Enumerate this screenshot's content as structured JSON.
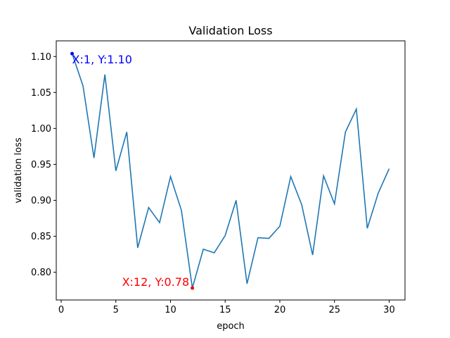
{
  "chart_data": {
    "type": "line",
    "title": "Validation Loss",
    "xlabel": "epoch",
    "ylabel": "validation loss",
    "xlim": [
      -0.45,
      31.45
    ],
    "ylim": [
      0.7614,
      1.1218
    ],
    "xticks": [
      0,
      5,
      10,
      15,
      20,
      25,
      30
    ],
    "yticks": [
      0.8,
      0.85,
      0.9,
      0.95,
      1.0,
      1.05,
      1.1
    ],
    "grid": false,
    "legend": "none",
    "line_color": "#1f77b4",
    "series": [
      {
        "x": [
          1,
          2,
          3,
          4,
          5,
          6,
          7,
          8,
          9,
          10,
          11,
          12,
          13,
          14,
          15,
          16,
          17,
          18,
          19,
          20,
          21,
          22,
          23,
          24,
          25,
          26,
          27,
          28,
          29,
          30
        ],
        "values": [
          1.104,
          1.059,
          0.959,
          1.075,
          0.941,
          0.995,
          0.834,
          0.89,
          0.869,
          0.933,
          0.886,
          0.778,
          0.832,
          0.827,
          0.851,
          0.9,
          0.784,
          0.848,
          0.847,
          0.864,
          0.933,
          0.894,
          0.824,
          0.934,
          0.895,
          0.995,
          1.027,
          0.861,
          0.91,
          0.944
        ]
      }
    ],
    "annotations": [
      {
        "text": "X:1, Y:1.10",
        "x": 1,
        "y": 1.104,
        "color": "#0000ff"
      },
      {
        "text": "X:12, Y:0.78",
        "x": 12,
        "y": 0.778,
        "color": "#ff0000"
      }
    ]
  }
}
